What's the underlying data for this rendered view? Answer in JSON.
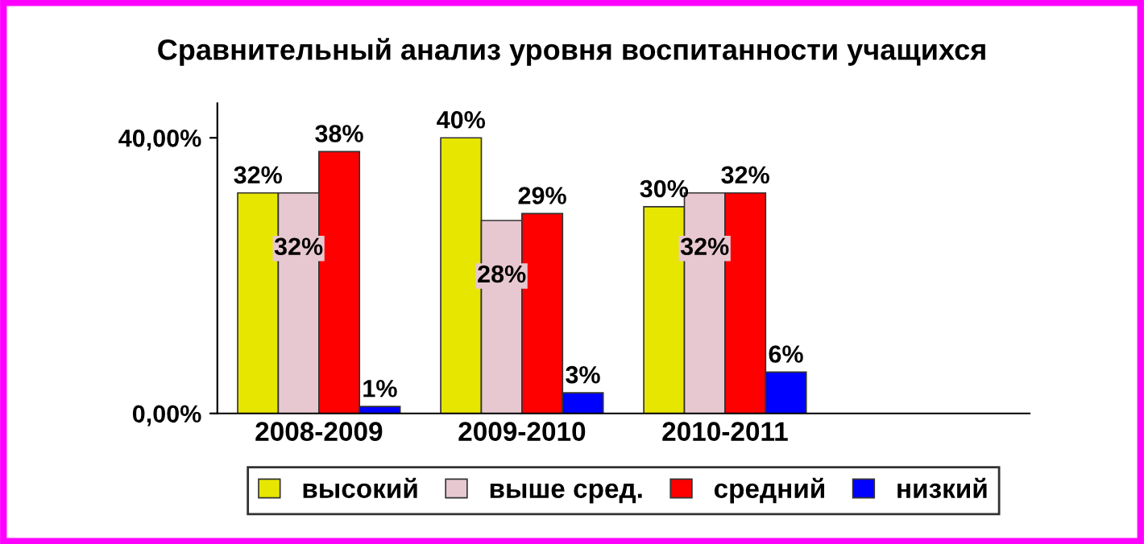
{
  "chart_data": {
    "type": "bar",
    "title": "Сравнительный анализ уровня воспитанности учащихся",
    "categories": [
      "2008-2009",
      "2009-2010",
      "2010-2011",
      null
    ],
    "series": [
      {
        "name": "высокий",
        "color": "#e6e600",
        "values": [
          32,
          40,
          30,
          null
        ],
        "value_labels": [
          "32%",
          "40%",
          "30%",
          null
        ]
      },
      {
        "name": "выше сред.",
        "color": "#e8c8d0",
        "values": [
          32,
          28,
          32,
          null
        ],
        "value_labels": [
          "32%",
          "28%",
          "32%",
          null
        ]
      },
      {
        "name": "средний",
        "color": "#ff0000",
        "values": [
          38,
          29,
          32,
          null
        ],
        "value_labels": [
          "38%",
          "29%",
          "32%",
          null
        ]
      },
      {
        "name": "низкий",
        "color": "#0000ff",
        "values": [
          1,
          3,
          6,
          null
        ],
        "value_labels": [
          "1%",
          "3%",
          "6%",
          null
        ]
      }
    ],
    "ylim": [
      0,
      45
    ],
    "yticks": [
      {
        "value": 0,
        "label": "0,00%"
      },
      {
        "value": 40,
        "label": "40,00%"
      }
    ],
    "grid": false,
    "legend": "bottom"
  }
}
